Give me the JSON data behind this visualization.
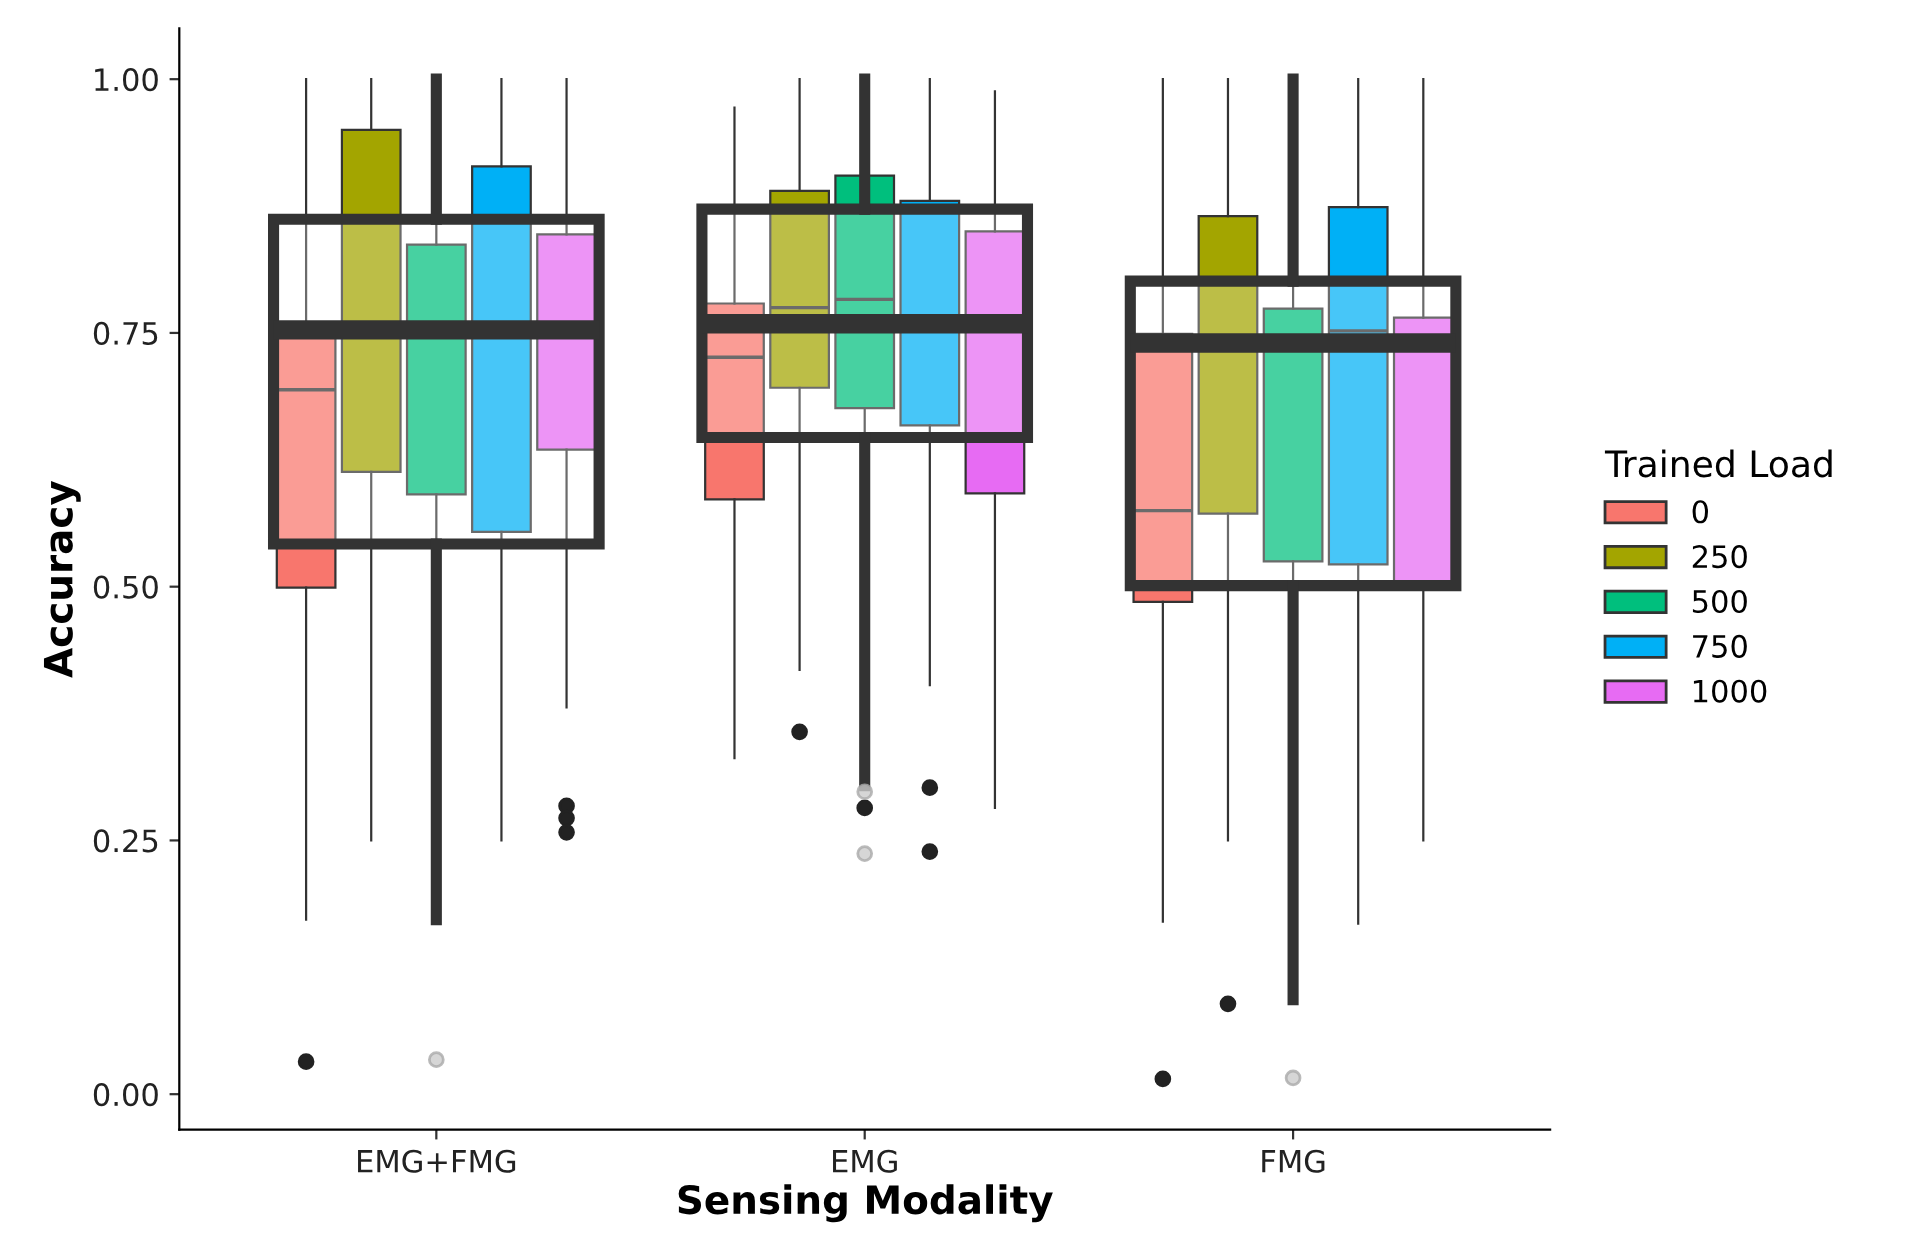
{
  "chart_data": {
    "type": "box",
    "xlabel": "Sensing Modality",
    "ylabel": "Accuracy",
    "legend_title": "Trained Load",
    "legend": "right",
    "grid": false,
    "categories": [
      "EMG+FMG",
      "EMG",
      "FMG"
    ],
    "ylim": [
      -0.035,
      1.05
    ],
    "yticks": [
      {
        "value": 0,
        "label": "0.00"
      },
      {
        "value": 0.25,
        "label": "0.25"
      },
      {
        "value": 0.5,
        "label": "0.50"
      },
      {
        "value": 0.75,
        "label": "0.75"
      },
      {
        "value": 1,
        "label": "1.00"
      }
    ],
    "series": [
      {
        "name": "0",
        "color": "#f8766d",
        "boxes": [
          {
            "low": 0.172,
            "q1": 0.499,
            "median": 0.694,
            "q3": 0.745,
            "high": 1.0,
            "outliers": [
              0.032
            ]
          },
          {
            "low": 0.331,
            "q1": 0.586,
            "median": 0.726,
            "q3": 0.779,
            "high": 0.972
          },
          {
            "low": 0.17,
            "q1": 0.485,
            "median": 0.575,
            "q3": 0.749,
            "high": 1.0,
            "outliers": [
              0.015
            ]
          }
        ]
      },
      {
        "name": "250",
        "color": "#a3a500",
        "boxes": [
          {
            "low": 0.25,
            "q1": 0.613,
            "median": 0.75,
            "q3": 0.95,
            "high": 1.0
          },
          {
            "low": 0.418,
            "q1": 0.696,
            "median": 0.775,
            "q3": 0.89,
            "high": 1.0,
            "outliers": [
              0.357
            ]
          },
          {
            "low": 0.25,
            "q1": 0.572,
            "median": 0.74,
            "q3": 0.865,
            "high": 1.0,
            "outliers": [
              0.089
            ]
          }
        ]
      },
      {
        "name": "500",
        "color": "#00bf7d",
        "boxes": [
          {
            "low": 0.172,
            "q1": 0.591,
            "median": 0.75,
            "q3": 0.837,
            "high": 1.0
          },
          {
            "low": 0.304,
            "q1": 0.676,
            "median": 0.783,
            "q3": 0.905,
            "high": 1.0,
            "outliers": [
              0.282
            ]
          },
          {
            "low": 0.093,
            "q1": 0.525,
            "median": 0.74,
            "q3": 0.774,
            "high": 1.0
          }
        ]
      },
      {
        "name": "750",
        "color": "#00b0f6",
        "boxes": [
          {
            "low": 0.25,
            "q1": 0.554,
            "median": 0.75,
            "q3": 0.914,
            "high": 1.0
          },
          {
            "low": 0.403,
            "q1": 0.659,
            "median": 0.767,
            "q3": 0.88,
            "high": 1.0,
            "outliers": [
              0.302,
              0.239
            ]
          },
          {
            "low": 0.168,
            "q1": 0.522,
            "median": 0.752,
            "q3": 0.874,
            "high": 1.0
          }
        ]
      },
      {
        "name": "1000",
        "color": "#e76bf3",
        "boxes": [
          {
            "low": 0.381,
            "q1": 0.635,
            "median": 0.75,
            "q3": 0.847,
            "high": 1.0,
            "outliers": [
              0.284,
              0.272,
              0.258
            ]
          },
          {
            "low": 0.282,
            "q1": 0.592,
            "median": 0.76,
            "q3": 0.85,
            "high": 0.988
          },
          {
            "low": 0.25,
            "q1": 0.505,
            "median": 0.74,
            "q3": 0.765,
            "high": 1.0
          }
        ]
      },
      {
        "color": "#333333",
        "boxes": [
          {
            "low": 0.172,
            "q1": 0.542,
            "median": 0.753,
            "q3": 0.862,
            "high": 1.0,
            "outliers": [
              0.034
            ]
          },
          {
            "low": 0.304,
            "q1": 0.647,
            "median": 0.759,
            "q3": 0.872,
            "high": 1.0,
            "outliers": [
              0.298,
              0.237
            ]
          },
          {
            "low": 0.093,
            "q1": 0.501,
            "median": 0.74,
            "q3": 0.801,
            "high": 1.0,
            "outliers": [
              0.016
            ]
          }
        ]
      }
    ]
  }
}
